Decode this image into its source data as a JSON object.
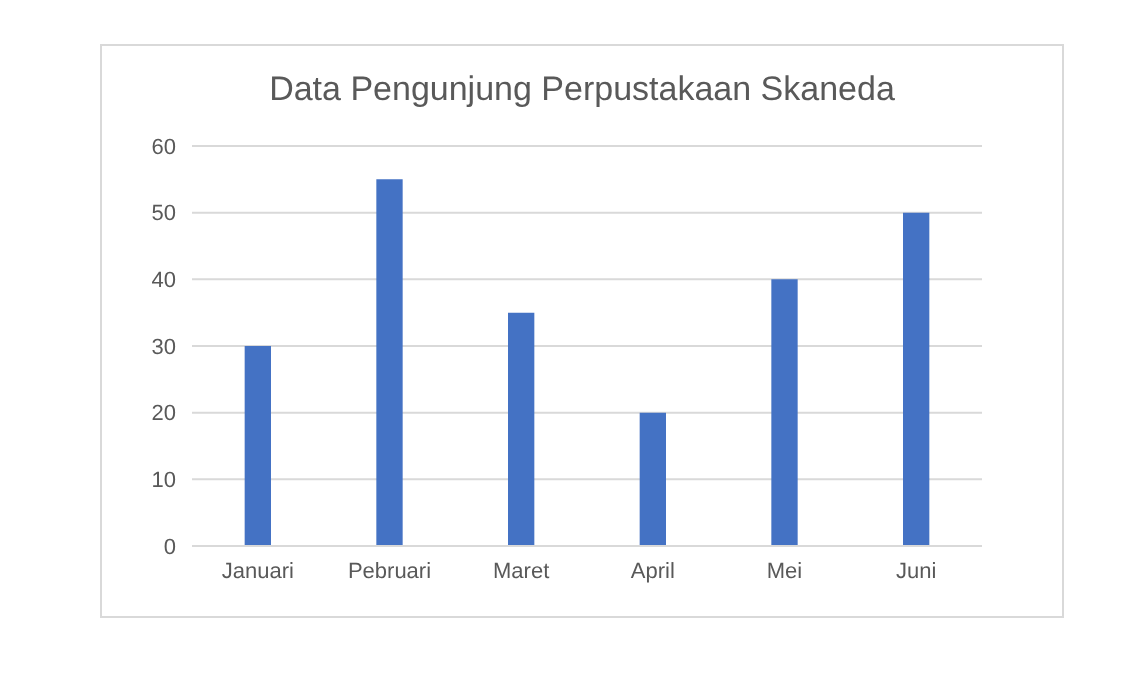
{
  "chart_data": {
    "type": "bar",
    "title": "Data Pengunjung Perpustakaan Skaneda",
    "categories": [
      "Januari",
      "Pebruari",
      "Maret",
      "April",
      "Mei",
      "Juni"
    ],
    "values": [
      30,
      55,
      35,
      20,
      40,
      50
    ],
    "color": "#4472c4",
    "ylim": [
      0,
      60
    ],
    "yticks": [
      0,
      10,
      20,
      30,
      40,
      50,
      60
    ],
    "grid": "y"
  }
}
